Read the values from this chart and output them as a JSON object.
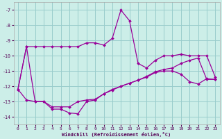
{
  "xlabel": "Windchill (Refroidissement éolien,°C)",
  "bg_color": "#cceee8",
  "grid_color": "#99cccc",
  "line_color": "#990099",
  "ylim": [
    -14.5,
    -6.5
  ],
  "xlim": [
    -0.5,
    23.5
  ],
  "yticks": [
    -14,
    -13,
    -12,
    -11,
    -10,
    -9,
    -8,
    -7
  ],
  "xticks": [
    0,
    1,
    2,
    3,
    4,
    5,
    6,
    7,
    8,
    9,
    10,
    11,
    12,
    13,
    14,
    15,
    16,
    17,
    18,
    19,
    20,
    21,
    22,
    23
  ],
  "series1_x": [
    0,
    1,
    2,
    3,
    4,
    5,
    6,
    7,
    8,
    9,
    10,
    11,
    12,
    13,
    14,
    15,
    16,
    17,
    18,
    19,
    20,
    21,
    22,
    23
  ],
  "series1_y": [
    -12.2,
    -9.4,
    -9.4,
    -9.4,
    -9.4,
    -9.4,
    -9.4,
    -9.4,
    -9.15,
    -9.15,
    -9.3,
    -8.85,
    -7.0,
    -7.7,
    -10.5,
    -10.8,
    -10.3,
    -10.0,
    -10.0,
    -9.9,
    -10.0,
    -10.0,
    -10.0,
    -11.4
  ],
  "series2_x": [
    0,
    1,
    2,
    3,
    4,
    5,
    6,
    7,
    8,
    9,
    10,
    11,
    12,
    13,
    14,
    15,
    16,
    17,
    18,
    19,
    20,
    21,
    22,
    23
  ],
  "series2_y": [
    -12.2,
    -12.9,
    -13.0,
    -13.0,
    -13.35,
    -13.35,
    -13.35,
    -13.0,
    -12.9,
    -12.85,
    -12.5,
    -12.25,
    -12.0,
    -11.8,
    -11.6,
    -11.35,
    -11.05,
    -10.9,
    -10.8,
    -10.5,
    -10.3,
    -10.15,
    -11.55,
    -11.55
  ],
  "series3_x": [
    0,
    1,
    2,
    3,
    4,
    5,
    6,
    7,
    8,
    9,
    10,
    11,
    12,
    13,
    14,
    15,
    16,
    17,
    18,
    19,
    20,
    21,
    22,
    23
  ],
  "series3_y": [
    -12.2,
    -9.4,
    -13.0,
    -13.0,
    -13.5,
    -13.5,
    -13.75,
    -13.8,
    -13.0,
    -12.9,
    -12.5,
    -12.2,
    -12.0,
    -11.8,
    -11.6,
    -11.4,
    -11.1,
    -11.0,
    -11.0,
    -11.2,
    -11.7,
    -11.85,
    -11.5,
    -11.55
  ]
}
